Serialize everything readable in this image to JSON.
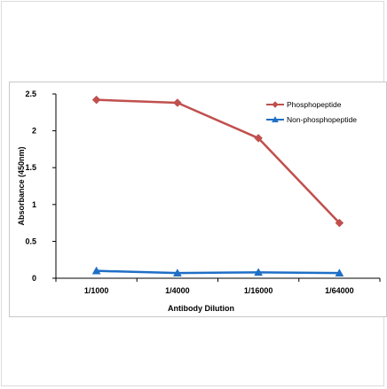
{
  "chart_data": {
    "type": "line",
    "categories": [
      "1/1000",
      "1/4000",
      "1/16000",
      "1/64000"
    ],
    "series": [
      {
        "name": "Phosphopeptide",
        "values": [
          2.42,
          2.38,
          1.9,
          0.75
        ],
        "color": "#c0504d",
        "marker": "diamond"
      },
      {
        "name": "Non-phosphopeptide",
        "values": [
          0.1,
          0.07,
          0.08,
          0.07
        ],
        "color": "#1f6fc6",
        "marker": "triangle"
      }
    ],
    "title": "",
    "xlabel": "Antibody Dilution",
    "ylabel": "Absorbance (450nm)",
    "ylim": [
      0,
      2.5
    ],
    "yticks": [
      "0",
      "0.5",
      "1",
      "1.5",
      "2",
      "2.5"
    ],
    "ytick_values": [
      0,
      0.5,
      1,
      1.5,
      2,
      2.5
    ],
    "grid": false,
    "legend_position": "top-right"
  }
}
